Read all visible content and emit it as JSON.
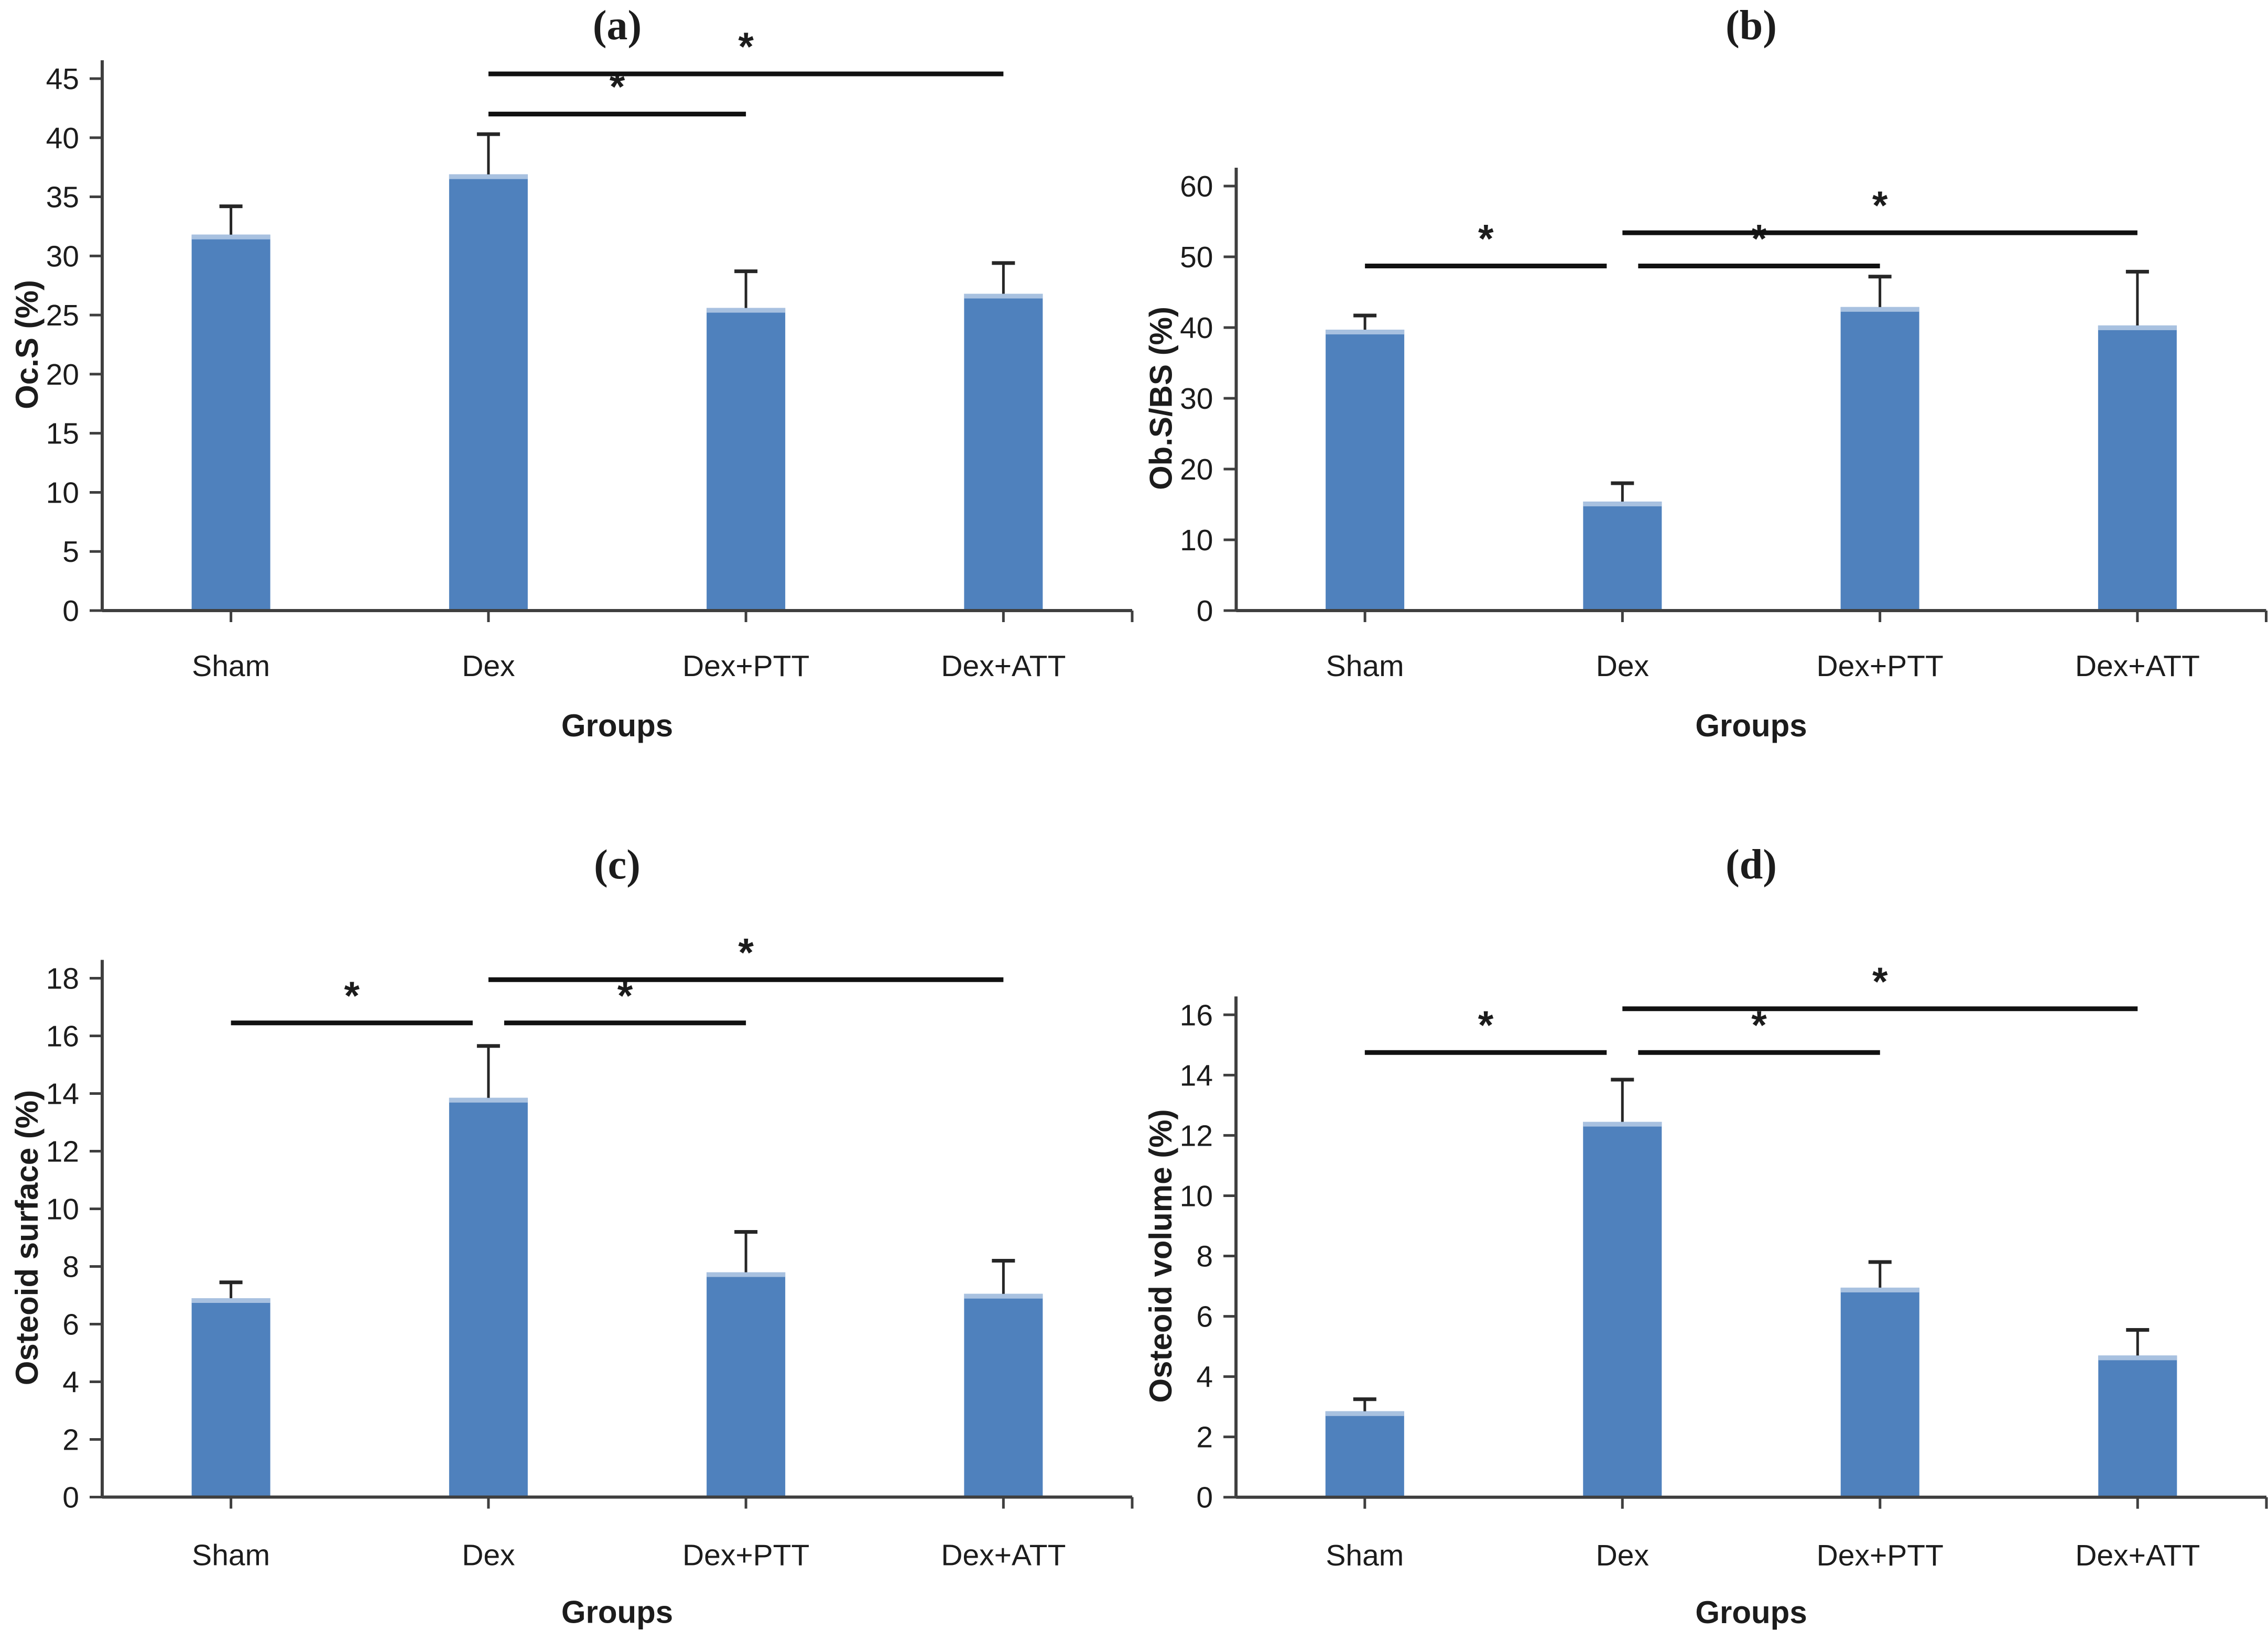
{
  "figure": {
    "background": "#ffffff",
    "panel_labels": [
      "(a)",
      "(b)",
      "(c)",
      "(d)"
    ]
  },
  "colors": {
    "bar_fill": "#4f81bd",
    "bar_top_edge": "#a8c1e0",
    "axis": "#3f3f3f",
    "error_bar": "#262626",
    "sig_line": "#111111",
    "text": "#1c1c1c"
  },
  "chart_data": [
    {
      "panel_label": "(a)",
      "type": "bar",
      "categories": [
        "Sham",
        "Dex",
        "Dex+PTT",
        "Dex+ATT"
      ],
      "values": [
        31.8,
        36.9,
        25.6,
        26.8
      ],
      "error_up": [
        2.4,
        3.4,
        3.1,
        2.6
      ],
      "title": "",
      "xlabel": "Groups",
      "ylabel": "Oc.S (%)",
      "ylim": [
        0,
        45
      ],
      "ytick_step": 5,
      "grid": false,
      "legend": null,
      "significance": [
        {
          "from": "Dex",
          "to": "Dex+PTT",
          "y": 42.0,
          "label": "*"
        },
        {
          "from": "Dex",
          "to": "Dex+ATT",
          "y": 45.4,
          "label": "*"
        }
      ]
    },
    {
      "panel_label": "(b)",
      "type": "bar",
      "categories": [
        "Sham",
        "Dex",
        "Dex+PTT",
        "Dex+ATT"
      ],
      "values": [
        39.7,
        15.4,
        42.9,
        40.3
      ],
      "error_up": [
        2.0,
        2.6,
        4.3,
        7.6
      ],
      "title": "",
      "xlabel": "Groups",
      "ylabel": "Ob.S/BS (%)",
      "ylim": [
        0,
        60
      ],
      "ytick_step": 10,
      "grid": false,
      "legend": null,
      "significance": [
        {
          "from": "Sham",
          "to": "Dex",
          "y": 48.7,
          "label": "*"
        },
        {
          "from": "Dex",
          "to": "Dex+PTT",
          "y": 48.7,
          "label": "*"
        },
        {
          "from": "Dex",
          "to": "Dex+ATT",
          "y": 53.4,
          "label": "*"
        }
      ]
    },
    {
      "panel_label": "(c)",
      "type": "bar",
      "categories": [
        "Sham",
        "Dex",
        "Dex+PTT",
        "Dex+ATT"
      ],
      "values": [
        6.9,
        13.85,
        7.8,
        7.05
      ],
      "error_up": [
        0.55,
        1.8,
        1.4,
        1.15
      ],
      "title": "",
      "xlabel": "Groups",
      "ylabel": "Osteoid surface (%)",
      "ylim": [
        0,
        18
      ],
      "ytick_step": 2,
      "grid": false,
      "legend": null,
      "significance": [
        {
          "from": "Sham",
          "to": "Dex",
          "y": 16.45,
          "label": "*"
        },
        {
          "from": "Dex",
          "to": "Dex+PTT",
          "y": 16.45,
          "label": "*"
        },
        {
          "from": "Dex",
          "to": "Dex+ATT",
          "y": 17.95,
          "label": "*"
        }
      ]
    },
    {
      "panel_label": "(d)",
      "type": "bar",
      "categories": [
        "Sham",
        "Dex",
        "Dex+PTT",
        "Dex+ATT"
      ],
      "values": [
        2.85,
        12.45,
        6.95,
        4.7
      ],
      "error_up": [
        0.4,
        1.4,
        0.85,
        0.85
      ],
      "title": "",
      "xlabel": "Groups",
      "ylabel": "Osteoid volume (%)",
      "ylim": [
        0,
        16
      ],
      "ytick_step": 2,
      "grid": false,
      "legend": null,
      "significance": [
        {
          "from": "Sham",
          "to": "Dex",
          "y": 14.75,
          "label": "*"
        },
        {
          "from": "Dex",
          "to": "Dex+PTT",
          "y": 14.75,
          "label": "*"
        },
        {
          "from": "Dex",
          "to": "Dex+ATT",
          "y": 16.2,
          "label": "*"
        }
      ]
    }
  ]
}
